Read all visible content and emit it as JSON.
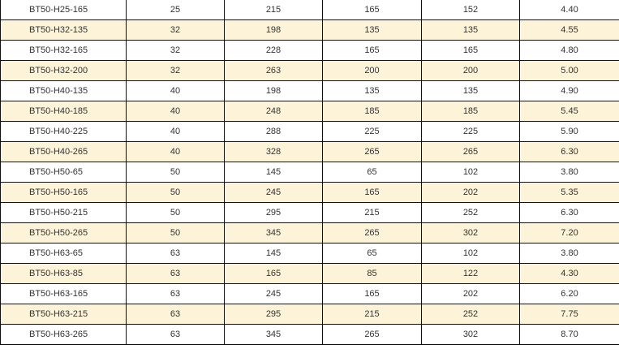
{
  "colors": {
    "alt_row": "#fdf3d9",
    "border": "#111111",
    "text": "#333333"
  },
  "rows": [
    [
      "BT50-H25-165",
      "25",
      "215",
      "165",
      "152",
      "4.40"
    ],
    [
      "BT50-H32-135",
      "32",
      "198",
      "135",
      "135",
      "4.55"
    ],
    [
      "BT50-H32-165",
      "32",
      "228",
      "165",
      "165",
      "4.80"
    ],
    [
      "BT50-H32-200",
      "32",
      "263",
      "200",
      "200",
      "5.00"
    ],
    [
      "BT50-H40-135",
      "40",
      "198",
      "135",
      "135",
      "4.90"
    ],
    [
      "BT50-H40-185",
      "40",
      "248",
      "185",
      "185",
      "5.45"
    ],
    [
      "BT50-H40-225",
      "40",
      "288",
      "225",
      "225",
      "5.90"
    ],
    [
      "BT50-H40-265",
      "40",
      "328",
      "265",
      "265",
      "6.30"
    ],
    [
      "BT50-H50-65",
      "50",
      "145",
      "65",
      "102",
      "3.80"
    ],
    [
      "BT50-H50-165",
      "50",
      "245",
      "165",
      "202",
      "5.35"
    ],
    [
      "BT50-H50-215",
      "50",
      "295",
      "215",
      "252",
      "6.30"
    ],
    [
      "BT50-H50-265",
      "50",
      "345",
      "265",
      "302",
      "7.20"
    ],
    [
      "BT50-H63-65",
      "63",
      "145",
      "65",
      "102",
      "3.80"
    ],
    [
      "BT50-H63-85",
      "63",
      "165",
      "85",
      "122",
      "4.30"
    ],
    [
      "BT50-H63-165",
      "63",
      "245",
      "165",
      "202",
      "6.20"
    ],
    [
      "BT50-H63-215",
      "63",
      "295",
      "215",
      "252",
      "7.75"
    ],
    [
      "BT50-H63-265",
      "63",
      "345",
      "265",
      "302",
      "8.70"
    ]
  ]
}
